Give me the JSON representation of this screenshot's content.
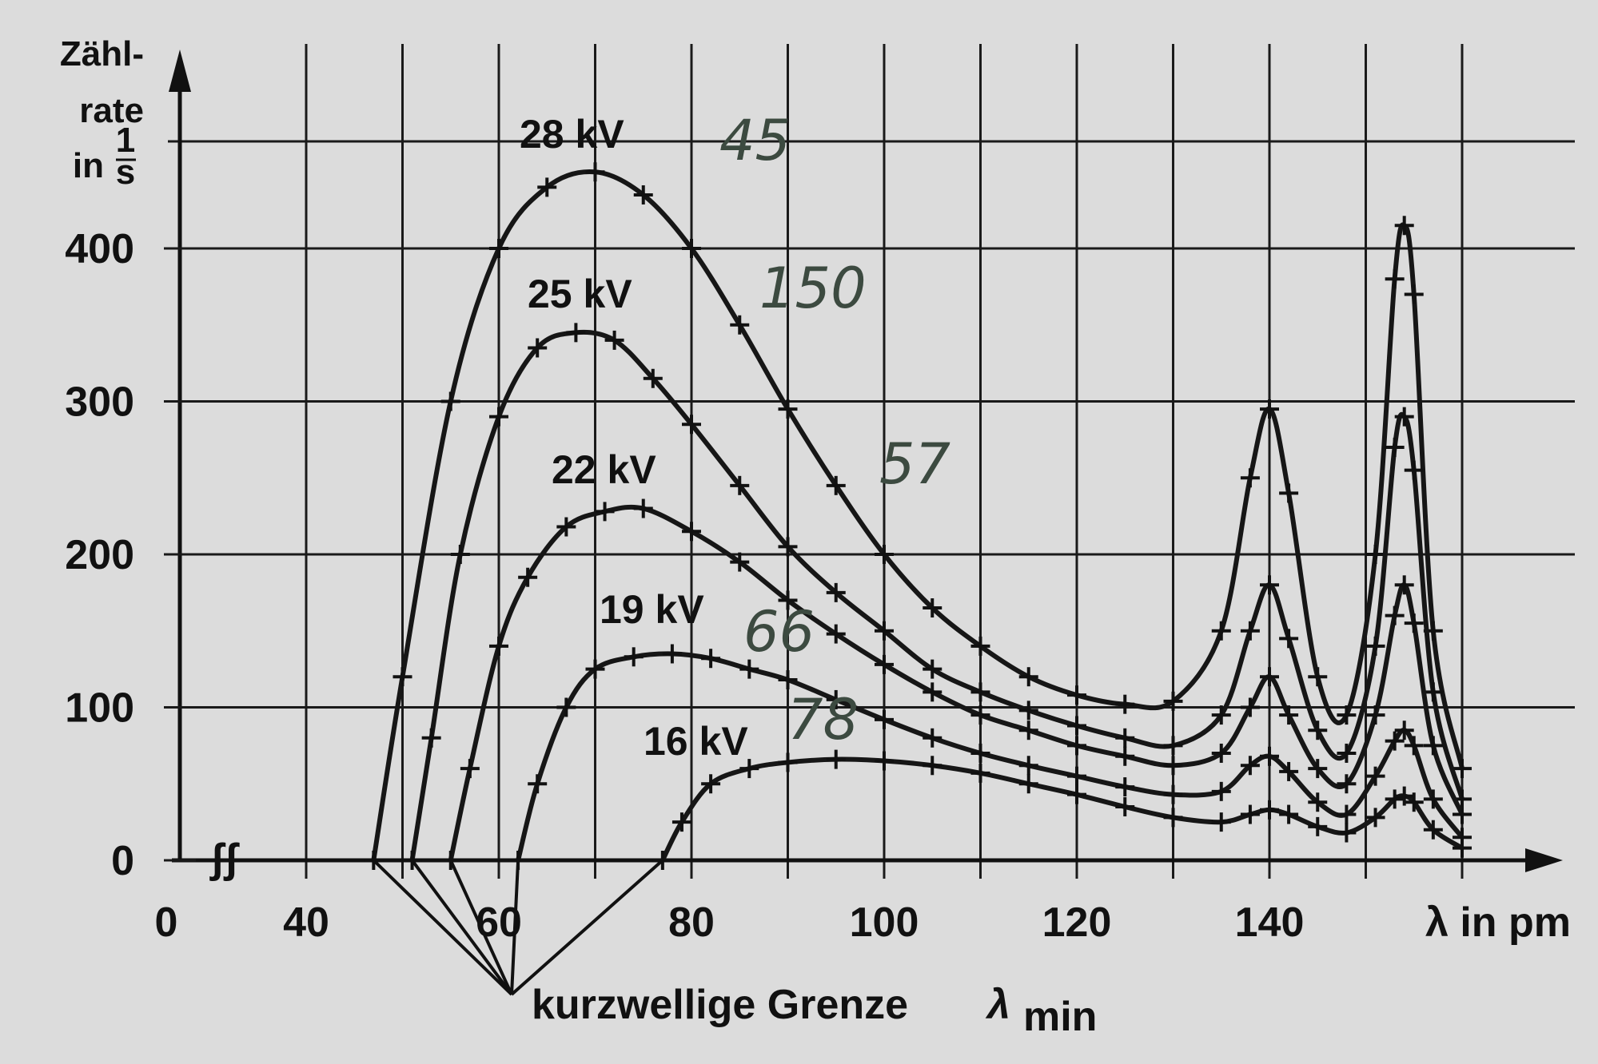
{
  "chart_data": {
    "type": "line",
    "ylabel_lines": [
      "Zähl-",
      "rate",
      "in"
    ],
    "ylabel_unit_num": "1",
    "ylabel_unit_den": "s",
    "xlabel": "λ in pm",
    "x_ticks": [
      0,
      40,
      60,
      80,
      100,
      120,
      140
    ],
    "y_ticks": [
      0,
      100,
      200,
      300,
      400
    ],
    "axis_break_symbol": "ʃʃ",
    "xlim": [
      0,
      160
    ],
    "ylim": [
      0,
      480
    ],
    "annotation": {
      "text": "kurzwellige Grenze",
      "symbol": "λ",
      "subscript": "min"
    },
    "series": [
      {
        "name": "28 kV",
        "x": [
          47,
          50,
          55,
          60,
          65,
          70,
          75,
          80,
          85,
          90,
          95,
          100,
          105,
          110,
          115,
          120,
          125,
          130,
          135,
          138,
          140,
          142,
          145,
          148,
          151,
          153,
          154,
          155,
          157,
          160
        ],
        "y": [
          0,
          120,
          300,
          400,
          440,
          450,
          435,
          400,
          350,
          295,
          245,
          200,
          165,
          140,
          120,
          108,
          102,
          104,
          150,
          250,
          295,
          240,
          120,
          95,
          200,
          380,
          415,
          370,
          150,
          60
        ]
      },
      {
        "name": "25 kV",
        "x": [
          51,
          53,
          56,
          60,
          64,
          68,
          72,
          76,
          80,
          85,
          90,
          95,
          100,
          105,
          110,
          115,
          120,
          125,
          130,
          135,
          138,
          140,
          142,
          145,
          148,
          151,
          153,
          154,
          155,
          157,
          160
        ],
        "y": [
          0,
          80,
          200,
          290,
          335,
          345,
          340,
          315,
          285,
          245,
          205,
          175,
          150,
          125,
          110,
          98,
          88,
          80,
          75,
          95,
          150,
          180,
          145,
          85,
          70,
          140,
          270,
          290,
          255,
          110,
          40
        ]
      },
      {
        "name": "22 kV",
        "x": [
          55,
          57,
          60,
          63,
          67,
          71,
          75,
          80,
          85,
          90,
          95,
          100,
          105,
          110,
          115,
          120,
          125,
          130,
          135,
          138,
          140,
          142,
          145,
          148,
          151,
          153,
          154,
          155,
          157,
          160
        ],
        "y": [
          0,
          60,
          140,
          185,
          218,
          228,
          230,
          215,
          195,
          170,
          148,
          128,
          110,
          95,
          85,
          75,
          68,
          62,
          70,
          100,
          120,
          95,
          60,
          50,
          95,
          160,
          180,
          155,
          75,
          30
        ]
      },
      {
        "name": "19 kV",
        "x": [
          62,
          64,
          67,
          70,
          74,
          78,
          82,
          86,
          90,
          95,
          100,
          105,
          110,
          115,
          120,
          125,
          130,
          135,
          138,
          140,
          142,
          145,
          148,
          151,
          153,
          154,
          155,
          157,
          160
        ],
        "y": [
          0,
          50,
          100,
          125,
          133,
          135,
          132,
          125,
          118,
          105,
          92,
          80,
          70,
          62,
          55,
          48,
          43,
          45,
          62,
          68,
          58,
          38,
          30,
          55,
          78,
          85,
          75,
          40,
          15
        ]
      },
      {
        "name": "16 kV",
        "x": [
          77,
          79,
          82,
          86,
          90,
          95,
          100,
          105,
          110,
          115,
          120,
          125,
          130,
          135,
          138,
          140,
          142,
          145,
          148,
          151,
          153,
          154,
          155,
          157,
          160
        ],
        "y": [
          0,
          25,
          50,
          60,
          64,
          66,
          65,
          62,
          57,
          50,
          43,
          35,
          28,
          25,
          30,
          33,
          30,
          22,
          18,
          28,
          40,
          42,
          38,
          20,
          8
        ]
      }
    ],
    "handwritten_notes": [
      "45",
      "150",
      "57",
      "66",
      "78"
    ]
  }
}
